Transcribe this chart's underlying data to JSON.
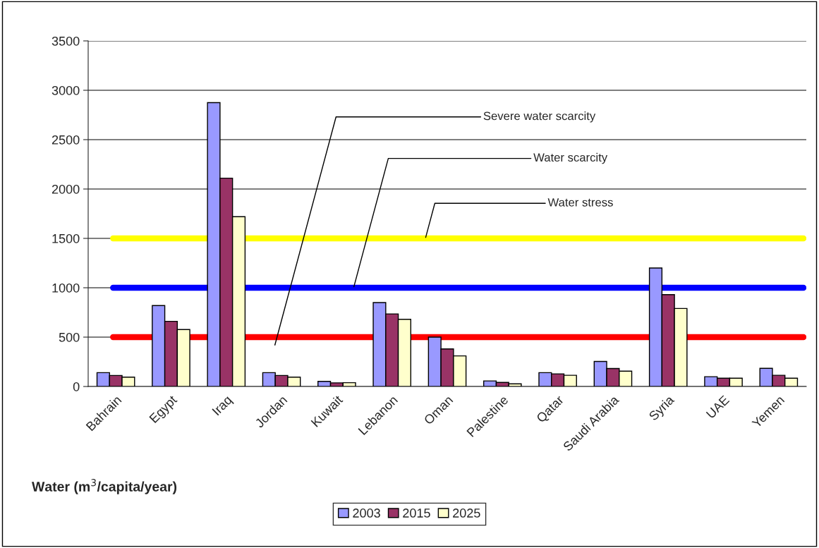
{
  "chart_data": {
    "type": "bar",
    "categories": [
      "Bahrain",
      "Egypt",
      "Iraq",
      "Jordan",
      "Kuwait",
      "Lebanon",
      "Oman",
      "Palestine",
      "Qatar",
      "Saudi Arabia",
      "Syria",
      "UAE",
      "Yemen"
    ],
    "series": [
      {
        "name": "2003",
        "color": "#9999ff",
        "values": [
          140,
          820,
          2875,
          140,
          52,
          850,
          500,
          56,
          140,
          254,
          1200,
          99,
          184
        ]
      },
      {
        "name": "2015",
        "color": "#993366",
        "values": [
          112,
          660,
          2110,
          112,
          37,
          735,
          380,
          41,
          128,
          182,
          930,
          84,
          113
        ]
      },
      {
        "name": "2025",
        "color": "#ffffcc",
        "values": [
          95,
          577,
          1720,
          95,
          38,
          680,
          310,
          27,
          113,
          155,
          790,
          84,
          84
        ]
      }
    ],
    "xlabel": "Water (m$^{3}$/capita/year)",
    "ylim": [
      0,
      3500
    ],
    "yticks": [
      0,
      500,
      1000,
      1500,
      2000,
      2500,
      3000,
      3500
    ],
    "grid": "y",
    "legend": "bottom",
    "ref_lines": [
      {
        "axis": "y",
        "value": 500,
        "label": "Severe water scarcity",
        "color": "#ff0000"
      },
      {
        "axis": "y",
        "value": 1000,
        "label": "Water scarcity",
        "color": "#0000ff"
      },
      {
        "axis": "y",
        "value": 1500,
        "label": "Water stress",
        "color": "#ffff00"
      }
    ]
  }
}
